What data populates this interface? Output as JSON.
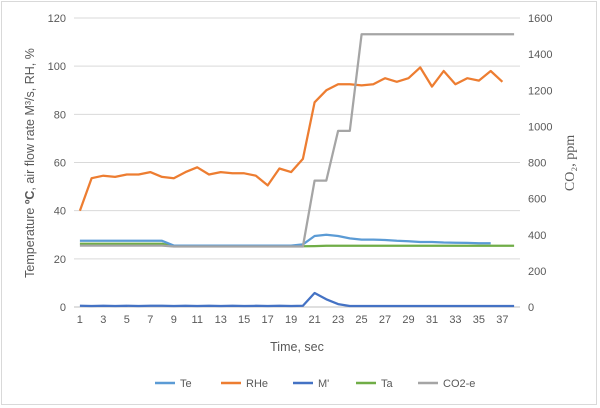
{
  "chart_data": {
    "type": "line",
    "xlabel": "Time, sec",
    "ylabel_left_main": "Temperature ",
    "ylabel_left_bold": "ºC",
    "ylabel_left_rest": ", air flow rate M³/s, RH, %",
    "ylabel_right": "CO₂, ppm",
    "x": [
      1,
      2,
      3,
      4,
      5,
      6,
      7,
      8,
      9,
      10,
      11,
      12,
      13,
      14,
      15,
      16,
      17,
      18,
      19,
      20,
      21,
      22,
      23,
      24,
      25,
      26,
      27,
      28,
      29,
      30,
      31,
      32,
      33,
      34,
      35,
      36,
      37,
      38
    ],
    "x_tick_labels": [
      "1",
      "3",
      "5",
      "7",
      "9",
      "11",
      "13",
      "15",
      "17",
      "19",
      "21",
      "23",
      "25",
      "27",
      "29",
      "31",
      "33",
      "35",
      "37"
    ],
    "x_tick_positions": [
      1,
      3,
      5,
      7,
      9,
      11,
      13,
      15,
      17,
      19,
      21,
      23,
      25,
      27,
      29,
      31,
      33,
      35,
      37
    ],
    "y_left_ticks": [
      "0",
      "20",
      "40",
      "60",
      "80",
      "100",
      "120"
    ],
    "y_left_range": [
      0,
      120
    ],
    "y_right_ticks": [
      "0",
      "200",
      "400",
      "600",
      "800",
      "1000",
      "1200",
      "1400",
      "1600"
    ],
    "y_right_range": [
      0,
      1600
    ],
    "grid": "horizontal",
    "legend_position": "bottom",
    "series": [
      {
        "name": "Te",
        "axis": "left",
        "color": "#5b9bd5",
        "x": [
          1,
          2,
          3,
          4,
          5,
          6,
          7,
          8,
          9,
          10,
          11,
          12,
          13,
          14,
          15,
          16,
          17,
          18,
          19,
          20,
          21,
          22,
          23,
          24,
          25,
          26,
          27,
          28,
          29,
          30,
          31,
          32,
          33,
          34,
          35,
          36
        ],
        "values": [
          27.5,
          27.5,
          27.5,
          27.5,
          27.5,
          27.5,
          27.5,
          27.5,
          25.5,
          25.5,
          25.5,
          25.5,
          25.5,
          25.5,
          25.5,
          25.5,
          25.5,
          25.5,
          25.5,
          26,
          29.5,
          30,
          29.5,
          28.5,
          28,
          28,
          27.8,
          27.5,
          27.3,
          27,
          27,
          26.8,
          26.7,
          26.6,
          26.5,
          26.5
        ]
      },
      {
        "name": "RHe",
        "axis": "left",
        "color": "#ed7d31",
        "x": [
          1,
          2,
          3,
          4,
          5,
          6,
          7,
          8,
          9,
          10,
          11,
          12,
          13,
          14,
          15,
          16,
          17,
          18,
          19,
          20,
          21,
          22,
          23,
          24,
          25,
          26,
          27,
          28,
          29,
          30,
          31,
          32,
          33,
          34,
          35,
          36,
          37
        ],
        "values": [
          40,
          53.5,
          54.5,
          54,
          55,
          55,
          56,
          54,
          53.5,
          56,
          58,
          55,
          56,
          55.5,
          55.5,
          54.5,
          50.5,
          57.5,
          56,
          61.5,
          85,
          90,
          92.5,
          92.5,
          92,
          92.5,
          95,
          93.5,
          95,
          99.5,
          91.5,
          98,
          92.5,
          95,
          94,
          98,
          93.5
        ]
      },
      {
        "name": "M'",
        "axis": "left",
        "color": "#4472c4",
        "x": [
          1,
          2,
          3,
          4,
          5,
          6,
          7,
          8,
          9,
          10,
          11,
          12,
          13,
          14,
          15,
          16,
          17,
          18,
          19,
          20,
          21,
          22,
          23,
          24,
          25,
          26,
          27,
          28,
          29,
          30,
          31,
          32,
          33,
          34,
          35,
          36,
          37,
          38
        ],
        "values": [
          0.5,
          0.4,
          0.5,
          0.4,
          0.5,
          0.4,
          0.5,
          0.5,
          0.4,
          0.5,
          0.4,
          0.5,
          0.4,
          0.5,
          0.4,
          0.5,
          0.4,
          0.5,
          0.4,
          0.5,
          5.8,
          3.2,
          1.2,
          0.4,
          0.4,
          0.4,
          0.4,
          0.4,
          0.4,
          0.4,
          0.4,
          0.4,
          0.4,
          0.4,
          0.4,
          0.4,
          0.4,
          0.4
        ]
      },
      {
        "name": "Ta",
        "axis": "left",
        "color": "#70ad47",
        "x": [
          1,
          2,
          3,
          4,
          5,
          6,
          7,
          8,
          9,
          10,
          11,
          12,
          13,
          14,
          15,
          16,
          17,
          18,
          19,
          20,
          21,
          22,
          23,
          24,
          25,
          26,
          27,
          28,
          29,
          30,
          31,
          32,
          33,
          34,
          35,
          36,
          37,
          38
        ],
        "values": [
          26.3,
          26.3,
          26.3,
          26.3,
          26.3,
          26.3,
          26.3,
          26.3,
          25.2,
          25.2,
          25.2,
          25.2,
          25.2,
          25.2,
          25.2,
          25.2,
          25.2,
          25.2,
          25.2,
          25.2,
          25.3,
          25.4,
          25.4,
          25.4,
          25.4,
          25.4,
          25.4,
          25.4,
          25.4,
          25.4,
          25.4,
          25.4,
          25.4,
          25.4,
          25.4,
          25.4,
          25.4,
          25.4
        ]
      },
      {
        "name": "CO2-e",
        "axis": "right",
        "color": "#a5a5a5",
        "x": [
          1,
          2,
          3,
          4,
          5,
          6,
          7,
          8,
          9,
          10,
          11,
          12,
          13,
          14,
          15,
          16,
          17,
          18,
          19,
          20,
          21,
          22,
          23,
          24,
          25,
          26,
          27,
          28,
          29,
          30,
          31,
          32,
          33,
          34,
          35,
          36,
          37,
          38
        ],
        "values": [
          340,
          340,
          340,
          340,
          340,
          340,
          340,
          340,
          335,
          335,
          335,
          335,
          335,
          335,
          335,
          335,
          335,
          335,
          335,
          335,
          700,
          700,
          975,
          975,
          1510,
          1510,
          1510,
          1510,
          1510,
          1510,
          1510,
          1510,
          1510,
          1510,
          1510,
          1510,
          1510,
          1510
        ]
      }
    ]
  }
}
